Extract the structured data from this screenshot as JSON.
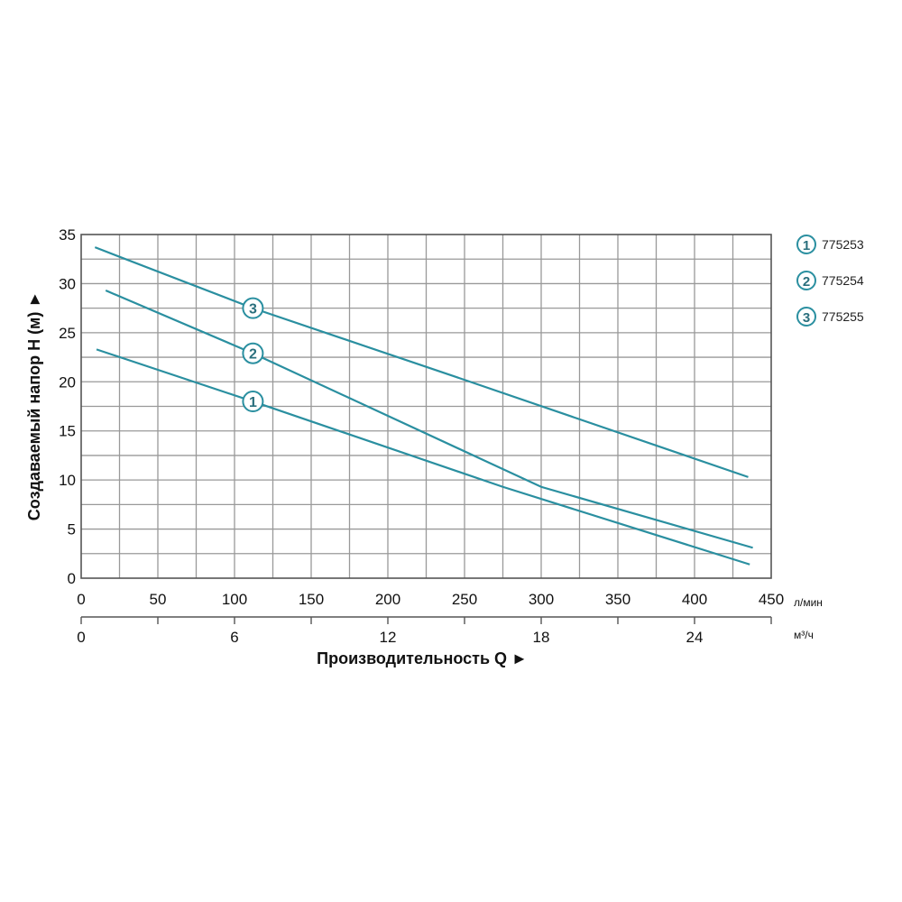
{
  "chart_data": {
    "type": "line",
    "xlabel": "Производительность Q ►",
    "ylabel": "Создаваемый напор H (м) ►",
    "x_unit": "л/мин",
    "x2_unit": "м³/ч",
    "xlim": [
      0,
      450
    ],
    "ylim": [
      0,
      35
    ],
    "x_ticks": [
      "0",
      "50",
      "100",
      "150",
      "200",
      "250",
      "300",
      "350",
      "400",
      "450"
    ],
    "x2_ticks": [
      "0",
      "6",
      "12",
      "18",
      "24"
    ],
    "y_ticks": [
      "0",
      "5",
      "10",
      "15",
      "20",
      "25",
      "30",
      "35"
    ],
    "grid": true,
    "legend_placement": "right",
    "color": "#2a8fa0",
    "series": [
      {
        "name": "775253",
        "marker": "1",
        "x": [
          10,
          112,
          275,
          436
        ],
        "y": [
          23.3,
          18.0,
          9.3,
          1.4
        ]
      },
      {
        "name": "775254",
        "marker": "2",
        "x": [
          16,
          112,
          300,
          438
        ],
        "y": [
          29.3,
          22.9,
          9.3,
          3.1
        ]
      },
      {
        "name": "775255",
        "marker": "3",
        "x": [
          9,
          112,
          250,
          435
        ],
        "y": [
          33.7,
          27.5,
          20.2,
          10.3
        ]
      }
    ]
  }
}
